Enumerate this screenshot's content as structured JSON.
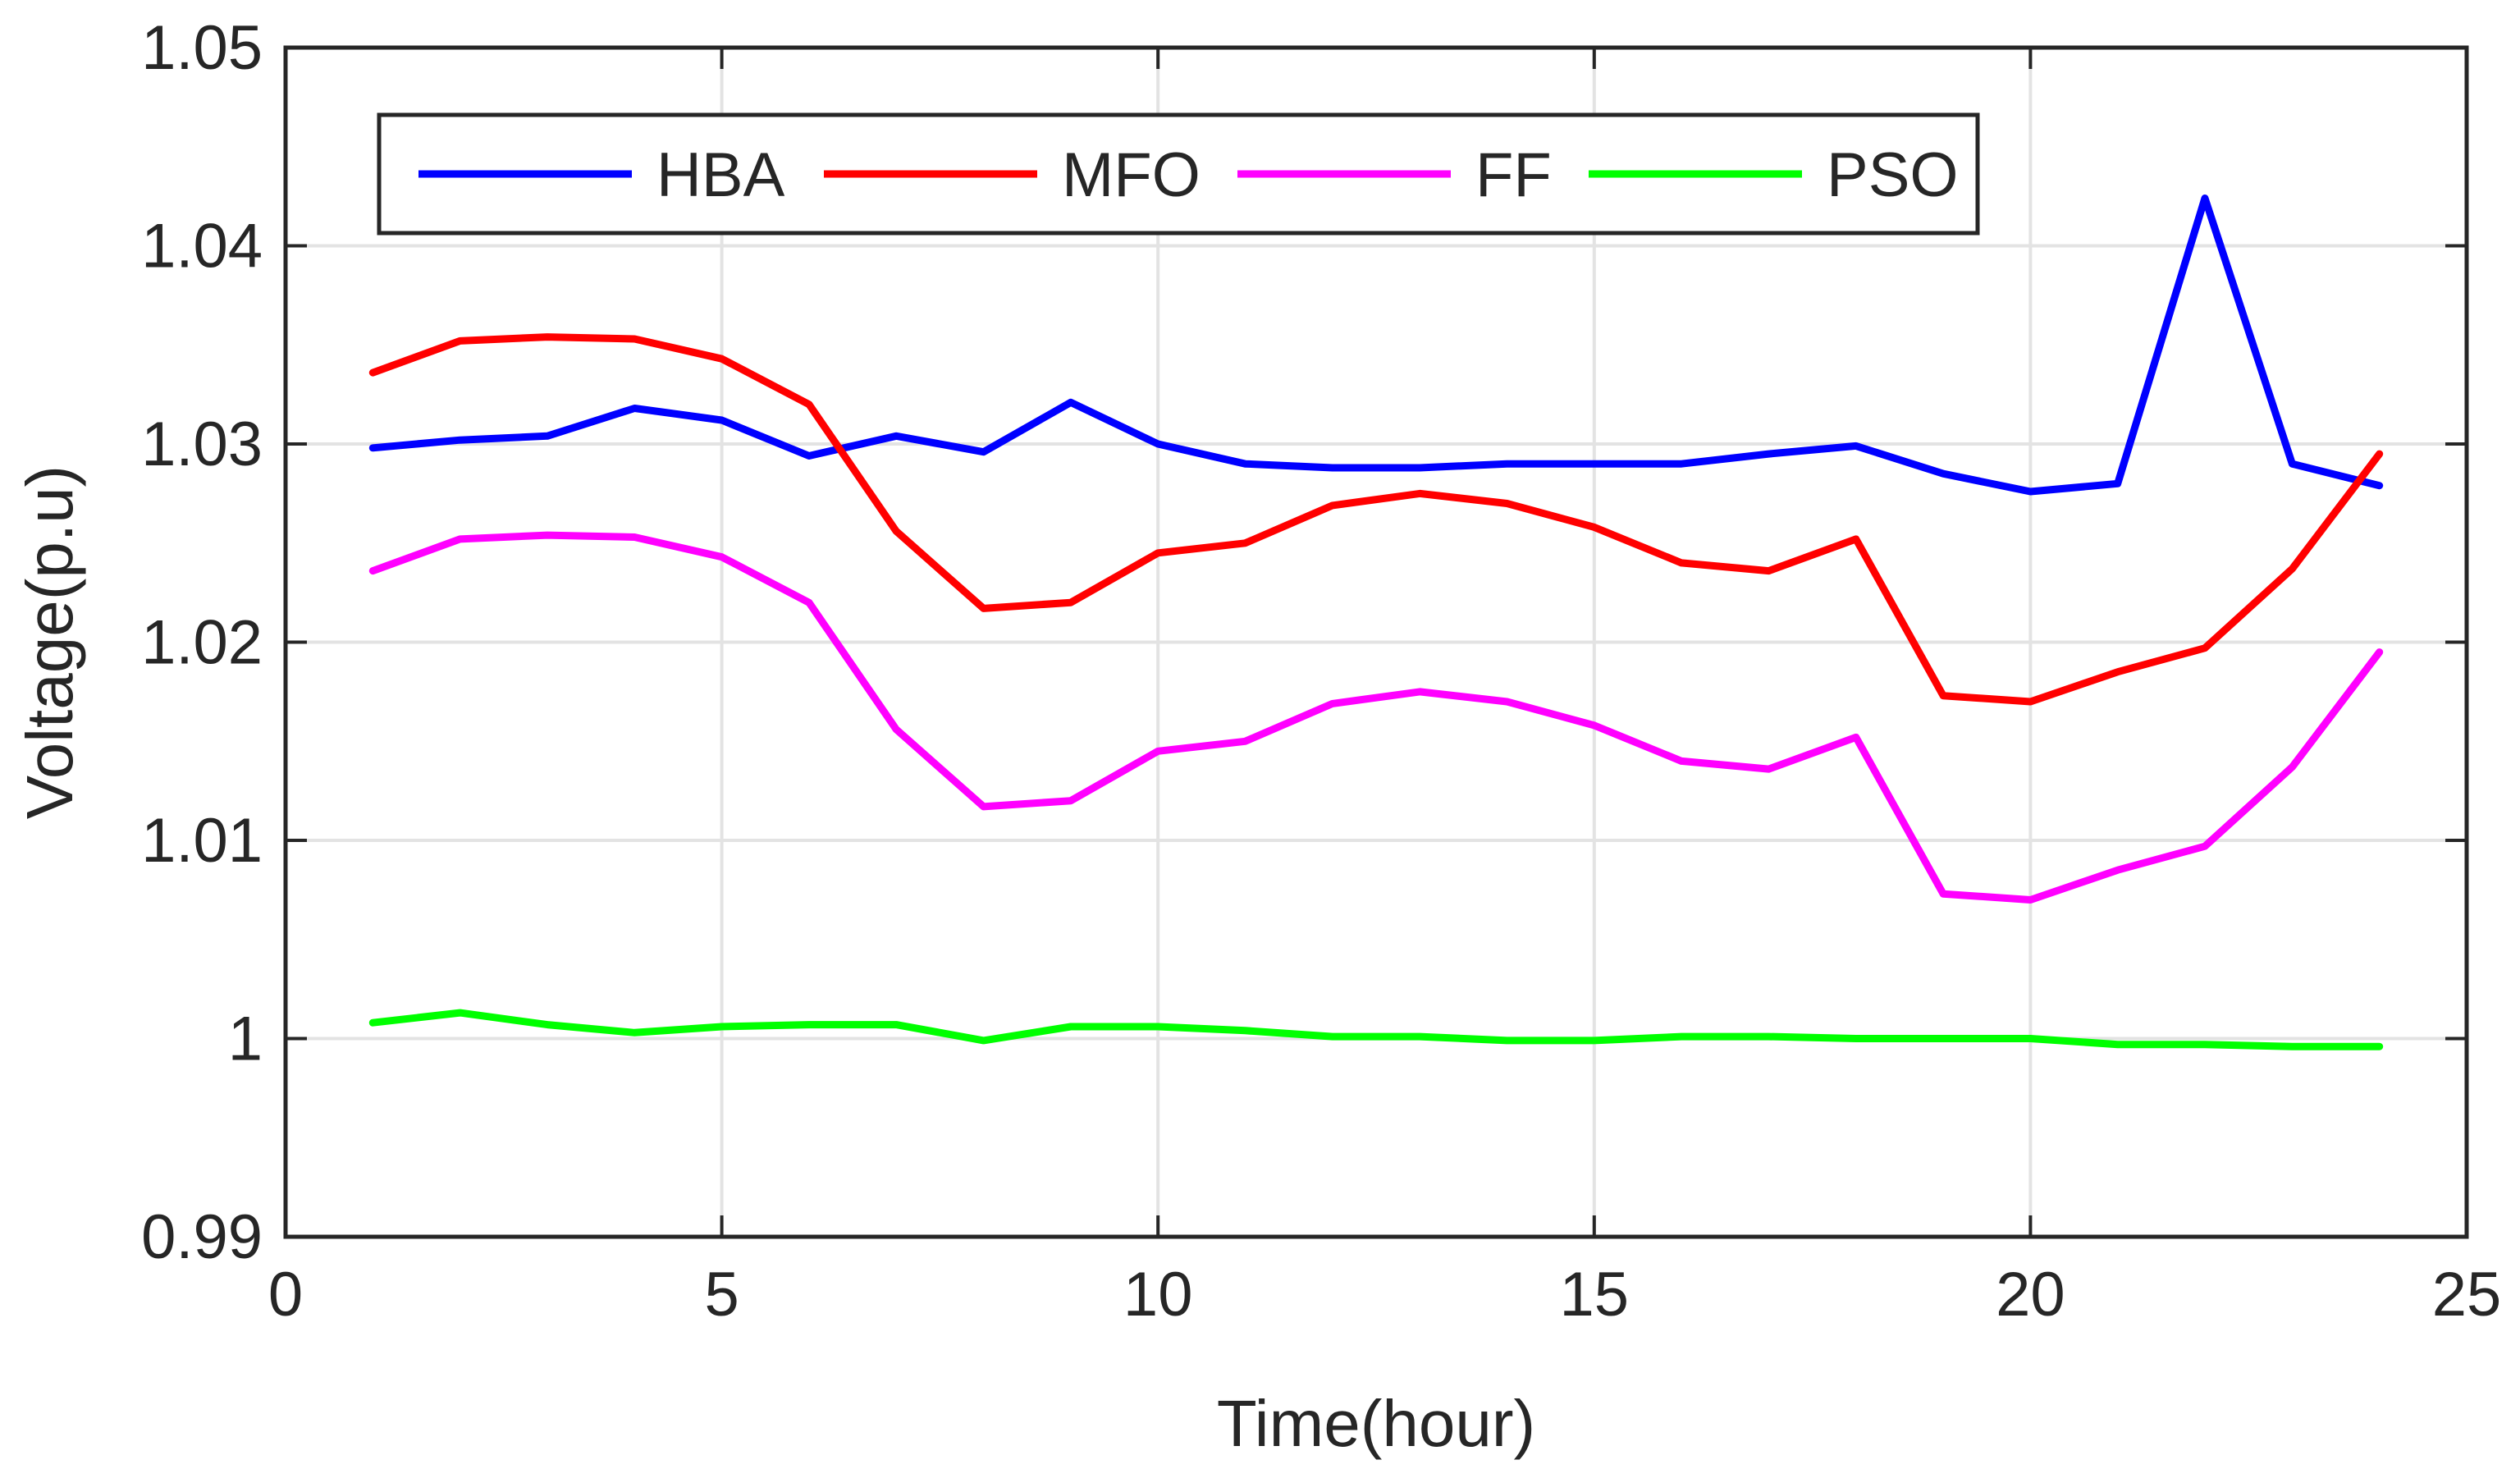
{
  "chart_data": {
    "type": "line",
    "title": "",
    "xlabel": "Time(hour)",
    "ylabel": "Voltage(p.u)",
    "xlim": [
      0,
      25
    ],
    "ylim": [
      0.99,
      1.05
    ],
    "xticks": [
      0,
      5,
      10,
      15,
      20,
      25
    ],
    "xtick_labels": [
      "0",
      "5",
      "10",
      "15",
      "20",
      "25"
    ],
    "yticks": [
      0.99,
      1.0,
      1.01,
      1.02,
      1.03,
      1.04,
      1.05
    ],
    "ytick_labels": [
      "0.99",
      "1",
      "1.01",
      "1.02",
      "1.03",
      "1.04",
      "1.05"
    ],
    "grid": true,
    "legend_position": "top-left",
    "legend_orientation": "horizontal",
    "x": [
      1,
      2,
      3,
      4,
      5,
      6,
      7,
      8,
      9,
      10,
      11,
      12,
      13,
      14,
      15,
      16,
      17,
      18,
      19,
      20,
      21,
      22,
      23,
      24
    ],
    "series": [
      {
        "name": "HBA",
        "color": "#0000ff",
        "values": [
          1.0298,
          1.0302,
          1.0304,
          1.0318,
          1.0312,
          1.0294,
          1.0304,
          1.0296,
          1.0321,
          1.03,
          1.029,
          1.0288,
          1.0288,
          1.029,
          1.029,
          1.029,
          1.0295,
          1.0299,
          1.0285,
          1.0276,
          1.028,
          1.0424,
          1.029,
          1.0279
        ]
      },
      {
        "name": "MFO",
        "color": "#ff0000",
        "values": [
          1.0336,
          1.0352,
          1.0354,
          1.0353,
          1.0343,
          1.032,
          1.0256,
          1.0217,
          1.022,
          1.0245,
          1.025,
          1.0269,
          1.0275,
          1.027,
          1.0258,
          1.024,
          1.0236,
          1.0252,
          1.0173,
          1.017,
          1.0185,
          1.0197,
          1.0237,
          1.0295
        ]
      },
      {
        "name": "FF",
        "color": "#ff00ff",
        "values": [
          1.0236,
          1.0252,
          1.0254,
          1.0253,
          1.0243,
          1.022,
          1.0156,
          1.0117,
          1.012,
          1.0145,
          1.015,
          1.0169,
          1.0175,
          1.017,
          1.0158,
          1.014,
          1.0136,
          1.0152,
          1.0073,
          1.007,
          1.0085,
          1.0097,
          1.0137,
          1.0195
        ]
      },
      {
        "name": "PSO",
        "color": "#00ff00",
        "values": [
          1.0008,
          1.0013,
          1.0007,
          1.0003,
          1.0006,
          1.0007,
          1.0007,
          0.9999,
          1.0006,
          1.0006,
          1.0004,
          1.0001,
          1.0001,
          0.9999,
          0.9999,
          1.0001,
          1.0001,
          1.0,
          1.0,
          1.0,
          0.9997,
          0.9997,
          0.9996,
          0.9996
        ]
      }
    ]
  }
}
